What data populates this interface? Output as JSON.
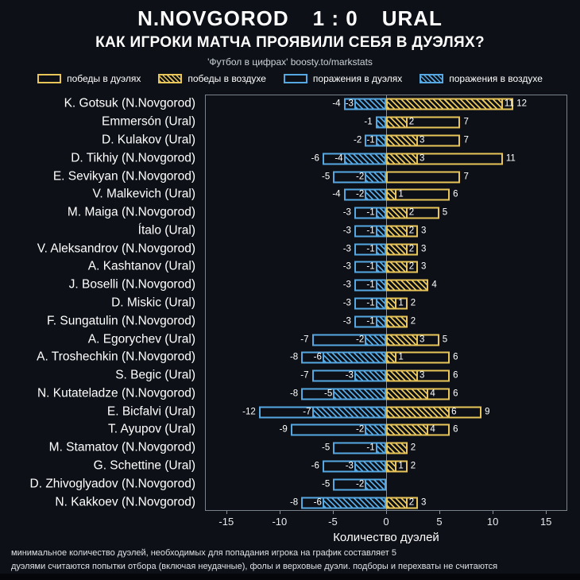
{
  "colors": {
    "background": "#0d1117",
    "win": "#e8c558",
    "loss": "#55a8e2",
    "plot_border": "#7a828c"
  },
  "chart_data": {
    "type": "bar",
    "orientation": "horizontal-diverging",
    "title": {
      "home": "N.NOVGOROD",
      "score": "1 : 0",
      "away": "URAL"
    },
    "subtitle": "КАК ИГРОКИ МАТЧА ПРОЯВИЛИ СЕБЯ В ДУЭЛЯХ?",
    "credit": "'Футбол в цифрах' boosty.to/markstats",
    "xlabel": "Количество дуэлей",
    "xlim": [
      -17,
      17
    ],
    "ticks": [
      -15,
      -10,
      -5,
      0,
      5,
      10,
      15
    ],
    "grid": false,
    "legend_position": "top",
    "legend": [
      {
        "id": "win-duels",
        "swatch": "sw-win",
        "label": "победы в дуэлях"
      },
      {
        "id": "win-air",
        "swatch": "sw-win-h",
        "label": "победы в воздухе"
      },
      {
        "id": "loss-duels",
        "swatch": "sw-loss",
        "label": "поражения в дуэлях"
      },
      {
        "id": "loss-air",
        "swatch": "sw-loss-h",
        "label": "поражения в воздухе"
      }
    ],
    "players": [
      {
        "name": "K. Gotsuk (N.Novgorod)",
        "loss_total": -4,
        "loss_air": -3,
        "win_air": 11,
        "win_total": 12
      },
      {
        "name": "Emmersón (Ural)",
        "loss_total": -1,
        "loss_air": -1,
        "win_air": 2,
        "win_total": 7
      },
      {
        "name": "D. Kulakov (Ural)",
        "loss_total": -2,
        "loss_air": -1,
        "win_air": 3,
        "win_total": 7
      },
      {
        "name": "D. Tikhiy (N.Novgorod)",
        "loss_total": -6,
        "loss_air": -4,
        "win_air": 3,
        "win_total": 11
      },
      {
        "name": "E. Sevikyan (N.Novgorod)",
        "loss_total": -5,
        "loss_air": -2,
        "win_air": null,
        "win_total": 7
      },
      {
        "name": "V. Malkevich (Ural)",
        "loss_total": -4,
        "loss_air": -2,
        "win_air": 1,
        "win_total": 6
      },
      {
        "name": "M. Maiga (N.Novgorod)",
        "loss_total": -3,
        "loss_air": -1,
        "win_air": 2,
        "win_total": 5
      },
      {
        "name": "Ítalo (Ural)",
        "loss_total": -3,
        "loss_air": -1,
        "win_air": 2,
        "win_total": 3
      },
      {
        "name": "V. Aleksandrov (N.Novgorod)",
        "loss_total": -3,
        "loss_air": -1,
        "win_air": 2,
        "win_total": 3
      },
      {
        "name": "A. Kashtanov (Ural)",
        "loss_total": -3,
        "loss_air": -1,
        "win_air": 2,
        "win_total": 3
      },
      {
        "name": "J. Boselli (N.Novgorod)",
        "loss_total": -3,
        "loss_air": -1,
        "win_air": 4,
        "win_total": 4
      },
      {
        "name": "D. Miskic (Ural)",
        "loss_total": -3,
        "loss_air": -1,
        "win_air": 1,
        "win_total": 2
      },
      {
        "name": "F. Sungatulin (N.Novgorod)",
        "loss_total": -3,
        "loss_air": -1,
        "win_air": 2,
        "win_total": 2
      },
      {
        "name": "A. Egorychev (Ural)",
        "loss_total": -7,
        "loss_air": -2,
        "win_air": 3,
        "win_total": 5
      },
      {
        "name": "A. Troshechkin (N.Novgorod)",
        "loss_total": -8,
        "loss_air": -6,
        "win_air": 1,
        "win_total": 6
      },
      {
        "name": "S. Begic (Ural)",
        "loss_total": -7,
        "loss_air": -3,
        "win_air": 3,
        "win_total": 6
      },
      {
        "name": "N. Kutateladze (N.Novgorod)",
        "loss_total": -8,
        "loss_air": -5,
        "win_air": 4,
        "win_total": 6
      },
      {
        "name": "E. Bicfalvi (Ural)",
        "loss_total": -12,
        "loss_air": -7,
        "win_air": 6,
        "win_total": 9
      },
      {
        "name": "T. Ayupov (Ural)",
        "loss_total": -9,
        "loss_air": -2,
        "win_air": 4,
        "win_total": 6
      },
      {
        "name": "M. Stamatov (N.Novgorod)",
        "loss_total": -5,
        "loss_air": -1,
        "win_air": 2,
        "win_total": 2
      },
      {
        "name": "G. Schettine (Ural)",
        "loss_total": -6,
        "loss_air": -3,
        "win_air": 1,
        "win_total": 2
      },
      {
        "name": "D. Zhivoglyadov (N.Novgorod)",
        "loss_total": -5,
        "loss_air": -2,
        "win_air": null,
        "win_total": null
      },
      {
        "name": "N. Kakkoev (N.Novgorod)",
        "loss_total": -8,
        "loss_air": -6,
        "win_air": 2,
        "win_total": 3
      }
    ],
    "footnotes": [
      "минимальное количество дуэлей, необходимых для попадания игрока на график составляет 5",
      "дуэлями считаются попытки отбора (включая неудачные), фолы и верховые дуэли. подборы и перехваты не считаются"
    ]
  }
}
